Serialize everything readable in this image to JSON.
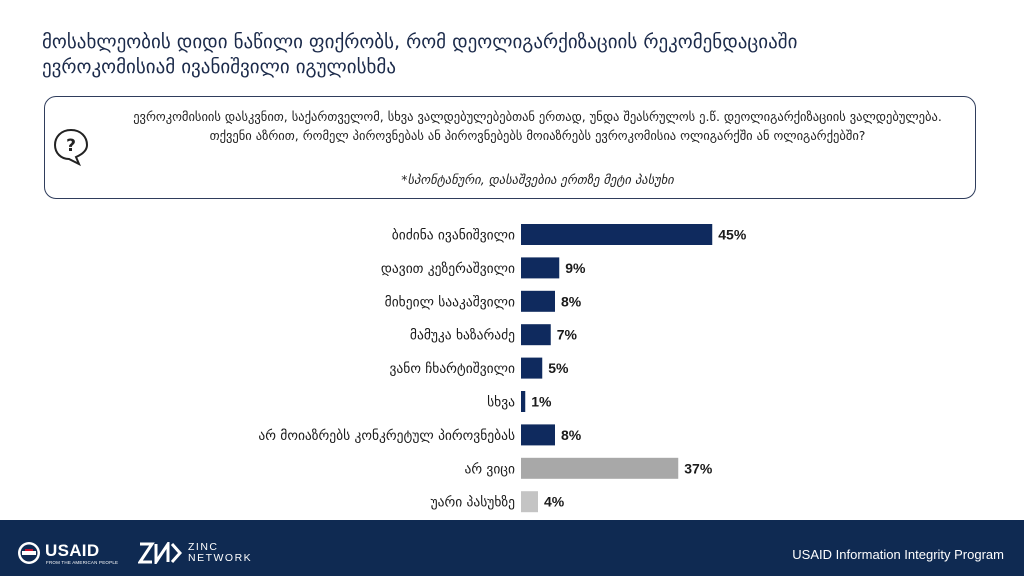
{
  "title": {
    "line1": "მოსახლეობის დიდი ნაწილი ფიქრობს, რომ დეოლიგარქიზაციის რეკომენდაციაში",
    "line2": "ევროკომისიამ ივანიშვილი იგულისხმა"
  },
  "question": {
    "text": "ევროკომისიის დასკვნით, საქართველომ, სხვა ვალდებულებებთან ერთად, უნდა შეასრულოს ე.წ. დეოლიგარქიზაციის ვალდებულება. თქვენი აზრით, რომელ პიროვნებას ან პიროვნებებს მოიაზრებს ევროკომისია ოლიგარქში ან ოლიგარქებში?",
    "note": "*სპონტანური, დასაშვებია ერთზე მეტი პასუხი",
    "icon": "question-bubble-icon"
  },
  "chart_data": {
    "type": "bar",
    "orientation": "horizontal",
    "categories": [
      "ბიძინა ივანიშვილი",
      "დავით კეზერაშვილი",
      "მიხეილ სააკაშვილი",
      "მამუკა ხაზარაძე",
      "ვანო ჩხარტიშვილი",
      "სხვა",
      "არ მოიაზრებს კონკრეტულ პიროვნებას",
      "არ ვიცი",
      "უარი პასუხზე"
    ],
    "values": [
      45,
      9,
      8,
      7,
      5,
      1,
      8,
      37,
      4
    ],
    "value_labels": [
      "45%",
      "9%",
      "8%",
      "7%",
      "5%",
      "1%",
      "8%",
      "37%",
      "4%"
    ],
    "colors": [
      "#0f2a5e",
      "#0f2a5e",
      "#0f2a5e",
      "#0f2a5e",
      "#0f2a5e",
      "#0f2a5e",
      "#0f2a5e",
      "#a8a8a8",
      "#c4c4c4"
    ],
    "xlim": [
      0,
      100
    ],
    "grid": false,
    "legend": "none"
  },
  "footer": {
    "usaid": "USAID",
    "usaid_tagline": "FROM THE AMERICAN PEOPLE",
    "zinc_line1": "ZINC",
    "zinc_line2": "NETWORK",
    "program": "USAID Information Integrity Program"
  }
}
